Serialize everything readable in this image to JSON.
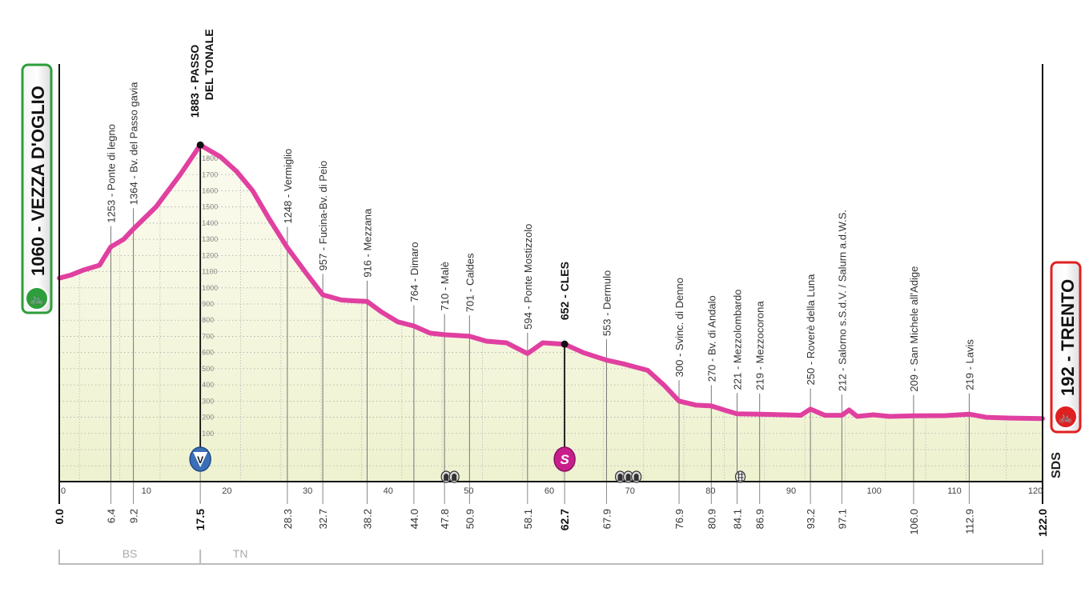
{
  "chart_data": {
    "type": "area",
    "xlim": [
      0,
      122
    ],
    "ylim": [
      -200,
      2000
    ],
    "grid": true,
    "colors": {
      "profile_line": "#e040a0",
      "fill": "#f4f6dc",
      "start": "#2e9e3a",
      "finish": "#e02020",
      "kom_marker": "#3a6fb8",
      "sprint_marker": "#c81e8c"
    },
    "x_ticks": [
      0,
      10,
      20,
      30,
      40,
      50,
      60,
      70,
      80,
      90,
      100,
      110,
      120
    ],
    "altitude_ticks": [
      100,
      200,
      300,
      400,
      500,
      600,
      700,
      800,
      900,
      1000,
      1100,
      1200,
      1300,
      1400,
      1500,
      1600,
      1700,
      1800
    ],
    "profile": [
      [
        0,
        1060
      ],
      [
        1.5,
        1080
      ],
      [
        3,
        1110
      ],
      [
        5,
        1140
      ],
      [
        6.4,
        1253
      ],
      [
        8,
        1300
      ],
      [
        9.2,
        1364
      ],
      [
        12,
        1500
      ],
      [
        15,
        1700
      ],
      [
        17.5,
        1883
      ],
      [
        20,
        1810
      ],
      [
        22,
        1720
      ],
      [
        24,
        1600
      ],
      [
        26,
        1430
      ],
      [
        28.3,
        1248
      ],
      [
        30.5,
        1100
      ],
      [
        32.7,
        957
      ],
      [
        35,
        925
      ],
      [
        36.5,
        920
      ],
      [
        38.2,
        916
      ],
      [
        40,
        850
      ],
      [
        42,
        790
      ],
      [
        44,
        764
      ],
      [
        46,
        720
      ],
      [
        47.8,
        710
      ],
      [
        50.9,
        701
      ],
      [
        53,
        670
      ],
      [
        55.5,
        660
      ],
      [
        58.1,
        594
      ],
      [
        60,
        660
      ],
      [
        62.7,
        652
      ],
      [
        65,
        600
      ],
      [
        67.9,
        553
      ],
      [
        70,
        530
      ],
      [
        71.5,
        510
      ],
      [
        73,
        490
      ],
      [
        75,
        400
      ],
      [
        76.9,
        300
      ],
      [
        79,
        275
      ],
      [
        80.9,
        270
      ],
      [
        82.5,
        245
      ],
      [
        84.1,
        221
      ],
      [
        86.9,
        219
      ],
      [
        90,
        215
      ],
      [
        92,
        212
      ],
      [
        93.2,
        250
      ],
      [
        95,
        212
      ],
      [
        97.1,
        212
      ],
      [
        98,
        245
      ],
      [
        99,
        205
      ],
      [
        101,
        215
      ],
      [
        103,
        205
      ],
      [
        106,
        209
      ],
      [
        110,
        210
      ],
      [
        112.9,
        219
      ],
      [
        115,
        200
      ],
      [
        118,
        195
      ],
      [
        122,
        192
      ]
    ],
    "start": {
      "label": "1060 - VEZZA D'OGLIO",
      "km": "0.0"
    },
    "finish": {
      "label": "192 - TRENTO",
      "km": "122.0"
    },
    "waypoints": [
      {
        "km": 6.4,
        "km_label": "6.4",
        "label": "1253 - Ponte di legno",
        "alt": 1253
      },
      {
        "km": 9.2,
        "km_label": "9.2",
        "label": "1364 - Bv. del Passo gavia",
        "alt": 1364
      },
      {
        "km": 17.5,
        "km_label": "17.5",
        "label": "1883 - PASSO",
        "label2": "DEL TONALE",
        "alt": 1883,
        "bold": true,
        "marker": "kom"
      },
      {
        "km": 28.3,
        "km_label": "28.3",
        "label": "1248 - Vermiglio",
        "alt": 1248
      },
      {
        "km": 32.7,
        "km_label": "32.7",
        "label": "957 - Fucina-Bv. di Peio",
        "alt": 957
      },
      {
        "km": 38.2,
        "km_label": "38.2",
        "label": "916 - Mezzana",
        "alt": 916
      },
      {
        "km": 44.0,
        "km_label": "44.0",
        "label": "764 - Dimaro",
        "alt": 764
      },
      {
        "km": 47.8,
        "km_label": "47.8",
        "label": "710 - Malè",
        "alt": 710
      },
      {
        "km": 50.9,
        "km_label": "50.9",
        "label": "701 - Caldes",
        "alt": 701
      },
      {
        "km": 58.1,
        "km_label": "58.1",
        "label": "594 - Ponte Mostizzolo",
        "alt": 594
      },
      {
        "km": 62.7,
        "km_label": "62.7",
        "label": "652 - CLES",
        "alt": 652,
        "bold": true,
        "marker": "sprint"
      },
      {
        "km": 67.9,
        "km_label": "67.9",
        "label": "553 - Dermulo",
        "alt": 553
      },
      {
        "km": 76.9,
        "km_label": "76.9",
        "label": "300 - Svinc. di Denno",
        "alt": 300
      },
      {
        "km": 80.9,
        "km_label": "80.9",
        "label": "270 - Bv. di Andalo",
        "alt": 270
      },
      {
        "km": 84.1,
        "km_label": "84.1",
        "label": "221 - Mezzolombardo",
        "alt": 221
      },
      {
        "km": 86.9,
        "km_label": "86.9",
        "label": "219 - Mezzocorona",
        "alt": 219
      },
      {
        "km": 93.2,
        "km_label": "93.2",
        "label": "250 - Roverè della Luna",
        "alt": 250
      },
      {
        "km": 97.1,
        "km_label": "97.1",
        "label": "212 - Salorno s.S.d.V. / Salurn a.d.W.S.",
        "alt": 212
      },
      {
        "km": 106.0,
        "km_label": "106.0",
        "label": "209 - San Michele all'Adige",
        "alt": 209
      },
      {
        "km": 112.9,
        "km_label": "112.9",
        "label": "219 - Lavis",
        "alt": 219
      }
    ],
    "markers": {
      "kom_letter": "V",
      "sprint_letter": "S"
    },
    "tunnels_km": [
      48.0,
      49.0,
      69.6,
      70.6,
      71.6
    ],
    "railway_crossing_km": [
      84.5
    ],
    "regions": [
      {
        "label": "BS",
        "from": 0,
        "to": 17.5
      },
      {
        "label": "TN",
        "from": 17.5,
        "to": 122
      }
    ],
    "brand": "SDS"
  }
}
